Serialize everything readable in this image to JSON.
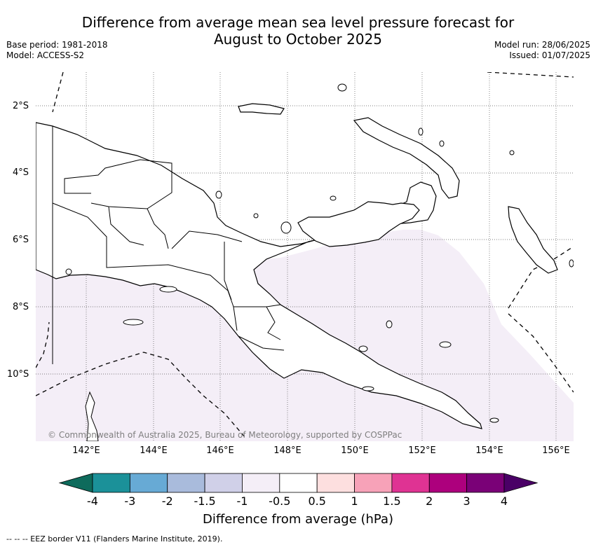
{
  "header": {
    "title_line1": "Difference from average mean sea level pressure forecast for",
    "title_line2": "August to October 2025",
    "base_period": "Base period: 1981-2018",
    "model": "Model: ACCESS-S2",
    "model_run": "Model run: 28/06/2025",
    "issued": "Issued: 01/07/2025"
  },
  "map": {
    "lat_labels": [
      "2°S",
      "4°S",
      "6°S",
      "8°S",
      "10°S"
    ],
    "lon_labels": [
      "142°E",
      "144°E",
      "146°E",
      "148°E",
      "150°E",
      "152°E",
      "154°E",
      "156°E"
    ],
    "copyright": "© Commonwealth of Australia 2025, Bureau of Meteorology, supported by COSPPac",
    "shaded_category": "-1 to -0.5"
  },
  "colorbar": {
    "ticks": [
      "-4",
      "-3",
      "-2",
      "-1.5",
      "-1",
      "-0.5",
      "0.5",
      "1",
      "1.5",
      "2",
      "3",
      "4"
    ],
    "colors": [
      "#0e6b5c",
      "#1b9199",
      "#67aad5",
      "#a9bbdc",
      "#d0d0e8",
      "#f4eef7",
      "#ffffff",
      "#fddfdf",
      "#f7a2b8",
      "#df3393",
      "#ad007d",
      "#7a0177",
      "#4a0066"
    ],
    "label": "Difference from average (hPa)"
  },
  "legend": {
    "eez_text": "-- -- -- EEZ border V11 (Flanders Marine Institute, 2019)."
  }
}
